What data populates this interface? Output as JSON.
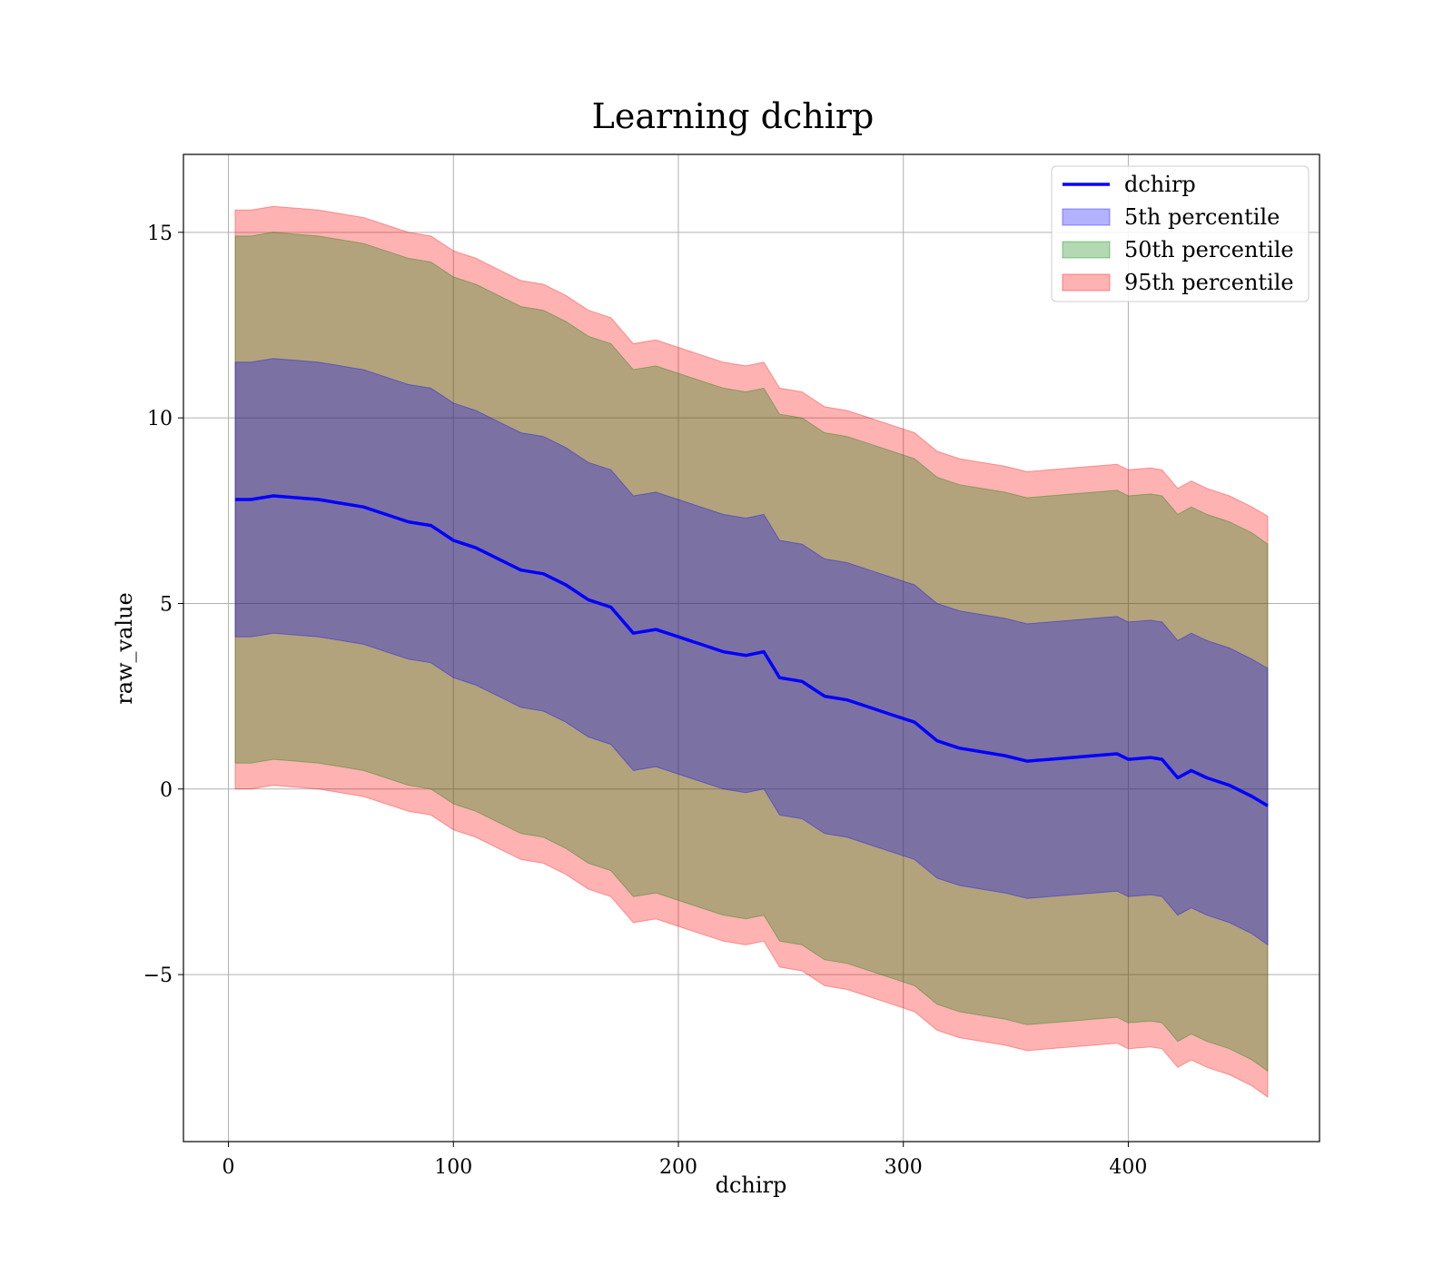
{
  "chart_data": {
    "type": "area",
    "title": "Learning dchirp",
    "xlabel": "dchirp",
    "ylabel": "raw_value",
    "xlim": [
      -20,
      485
    ],
    "ylim": [
      -9.5,
      17.1
    ],
    "x_ticks": [
      0,
      100,
      200,
      300,
      400
    ],
    "x_tick_labels": [
      "0",
      "100",
      "200",
      "300",
      "400"
    ],
    "y_ticks": [
      -5,
      0,
      5,
      10,
      15
    ],
    "y_tick_labels": [
      "−5",
      "0",
      "5",
      "10",
      "15"
    ],
    "grid": true,
    "legend_position": "top-right",
    "x": [
      3,
      10,
      20,
      30,
      40,
      50,
      60,
      70,
      80,
      90,
      100,
      110,
      120,
      130,
      140,
      150,
      160,
      170,
      180,
      190,
      200,
      210,
      220,
      230,
      238,
      245,
      255,
      265,
      275,
      285,
      295,
      305,
      315,
      325,
      335,
      345,
      355,
      365,
      375,
      385,
      395,
      400,
      410,
      415,
      422,
      428,
      435,
      445,
      455,
      462
    ],
    "series": [
      {
        "name": "dchirp",
        "kind": "line",
        "color": "#0000ff",
        "values": [
          7.8,
          7.8,
          7.9,
          7.85,
          7.8,
          7.7,
          7.6,
          7.4,
          7.2,
          7.1,
          6.7,
          6.5,
          6.2,
          5.9,
          5.8,
          5.5,
          5.1,
          4.9,
          4.2,
          4.3,
          4.1,
          3.9,
          3.7,
          3.6,
          3.7,
          3.0,
          2.9,
          2.5,
          2.4,
          2.2,
          2.0,
          1.8,
          1.3,
          1.1,
          1.0,
          0.9,
          0.75,
          0.8,
          0.85,
          0.9,
          0.95,
          0.8,
          0.85,
          0.8,
          0.3,
          0.5,
          0.3,
          0.1,
          -0.2,
          -0.45
        ]
      },
      {
        "name": "5th percentile",
        "kind": "band",
        "color": "#0000ff",
        "opacity": 0.3,
        "lower": [
          4.1,
          4.1,
          4.2,
          4.15,
          4.1,
          4.0,
          3.9,
          3.7,
          3.5,
          3.4,
          3.0,
          2.8,
          2.5,
          2.2,
          2.1,
          1.8,
          1.4,
          1.2,
          0.5,
          0.6,
          0.4,
          0.2,
          0.0,
          -0.1,
          0.0,
          -0.7,
          -0.8,
          -1.2,
          -1.3,
          -1.5,
          -1.7,
          -1.9,
          -2.4,
          -2.6,
          -2.7,
          -2.8,
          -2.95,
          -2.9,
          -2.85,
          -2.8,
          -2.75,
          -2.9,
          -2.85,
          -2.9,
          -3.4,
          -3.2,
          -3.4,
          -3.6,
          -3.9,
          -4.2
        ],
        "upper": [
          11.5,
          11.5,
          11.6,
          11.55,
          11.5,
          11.4,
          11.3,
          11.1,
          10.9,
          10.8,
          10.4,
          10.2,
          9.9,
          9.6,
          9.5,
          9.2,
          8.8,
          8.6,
          7.9,
          8.0,
          7.8,
          7.6,
          7.4,
          7.3,
          7.4,
          6.7,
          6.6,
          6.2,
          6.1,
          5.9,
          5.7,
          5.5,
          5.0,
          4.8,
          4.7,
          4.6,
          4.45,
          4.5,
          4.55,
          4.6,
          4.65,
          4.5,
          4.55,
          4.5,
          4.0,
          4.2,
          4.0,
          3.8,
          3.5,
          3.25
        ]
      },
      {
        "name": "50th percentile",
        "kind": "band",
        "color": "#008000",
        "opacity": 0.3,
        "lower": [
          0.7,
          0.7,
          0.8,
          0.75,
          0.7,
          0.6,
          0.5,
          0.3,
          0.1,
          0.0,
          -0.4,
          -0.6,
          -0.9,
          -1.2,
          -1.3,
          -1.6,
          -2.0,
          -2.2,
          -2.9,
          -2.8,
          -3.0,
          -3.2,
          -3.4,
          -3.5,
          -3.4,
          -4.1,
          -4.2,
          -4.6,
          -4.7,
          -4.9,
          -5.1,
          -5.3,
          -5.8,
          -6.0,
          -6.1,
          -6.2,
          -6.35,
          -6.3,
          -6.25,
          -6.2,
          -6.15,
          -6.3,
          -6.25,
          -6.3,
          -6.8,
          -6.6,
          -6.8,
          -7.0,
          -7.3,
          -7.6
        ],
        "upper": [
          14.9,
          14.9,
          15.0,
          14.95,
          14.9,
          14.8,
          14.7,
          14.5,
          14.3,
          14.2,
          13.8,
          13.6,
          13.3,
          13.0,
          12.9,
          12.6,
          12.2,
          12.0,
          11.3,
          11.4,
          11.2,
          11.0,
          10.8,
          10.7,
          10.8,
          10.1,
          10.0,
          9.6,
          9.5,
          9.3,
          9.1,
          8.9,
          8.4,
          8.2,
          8.1,
          8.0,
          7.85,
          7.9,
          7.95,
          8.0,
          8.05,
          7.9,
          7.95,
          7.9,
          7.4,
          7.6,
          7.4,
          7.2,
          6.9,
          6.6
        ]
      },
      {
        "name": "95th percentile",
        "kind": "band",
        "color": "#ff0000",
        "opacity": 0.3,
        "lower": [
          0.0,
          0.0,
          0.1,
          0.05,
          0.0,
          -0.1,
          -0.2,
          -0.4,
          -0.6,
          -0.7,
          -1.1,
          -1.3,
          -1.6,
          -1.9,
          -2.0,
          -2.3,
          -2.7,
          -2.9,
          -3.6,
          -3.5,
          -3.7,
          -3.9,
          -4.1,
          -4.2,
          -4.1,
          -4.8,
          -4.9,
          -5.3,
          -5.4,
          -5.6,
          -5.8,
          -6.0,
          -6.5,
          -6.7,
          -6.8,
          -6.9,
          -7.05,
          -7.0,
          -6.95,
          -6.9,
          -6.85,
          -7.0,
          -6.95,
          -7.0,
          -7.5,
          -7.3,
          -7.5,
          -7.7,
          -8.0,
          -8.3
        ],
        "upper": [
          15.6,
          15.6,
          15.7,
          15.65,
          15.6,
          15.5,
          15.4,
          15.2,
          15.0,
          14.9,
          14.5,
          14.3,
          14.0,
          13.7,
          13.6,
          13.3,
          12.9,
          12.7,
          12.0,
          12.1,
          11.9,
          11.7,
          11.5,
          11.4,
          11.5,
          10.8,
          10.7,
          10.3,
          10.2,
          10.0,
          9.8,
          9.6,
          9.1,
          8.9,
          8.8,
          8.7,
          8.55,
          8.6,
          8.65,
          8.7,
          8.75,
          8.6,
          8.65,
          8.6,
          8.1,
          8.3,
          8.1,
          7.9,
          7.6,
          7.35
        ]
      }
    ],
    "legend": [
      {
        "label": "dchirp",
        "kind": "line",
        "color": "#0000ff"
      },
      {
        "label": "5th percentile",
        "kind": "patch",
        "color": "#0000ff"
      },
      {
        "label": "50th percentile",
        "kind": "patch",
        "color": "#008000"
      },
      {
        "label": "95th percentile",
        "kind": "patch",
        "color": "#ff0000"
      }
    ]
  }
}
